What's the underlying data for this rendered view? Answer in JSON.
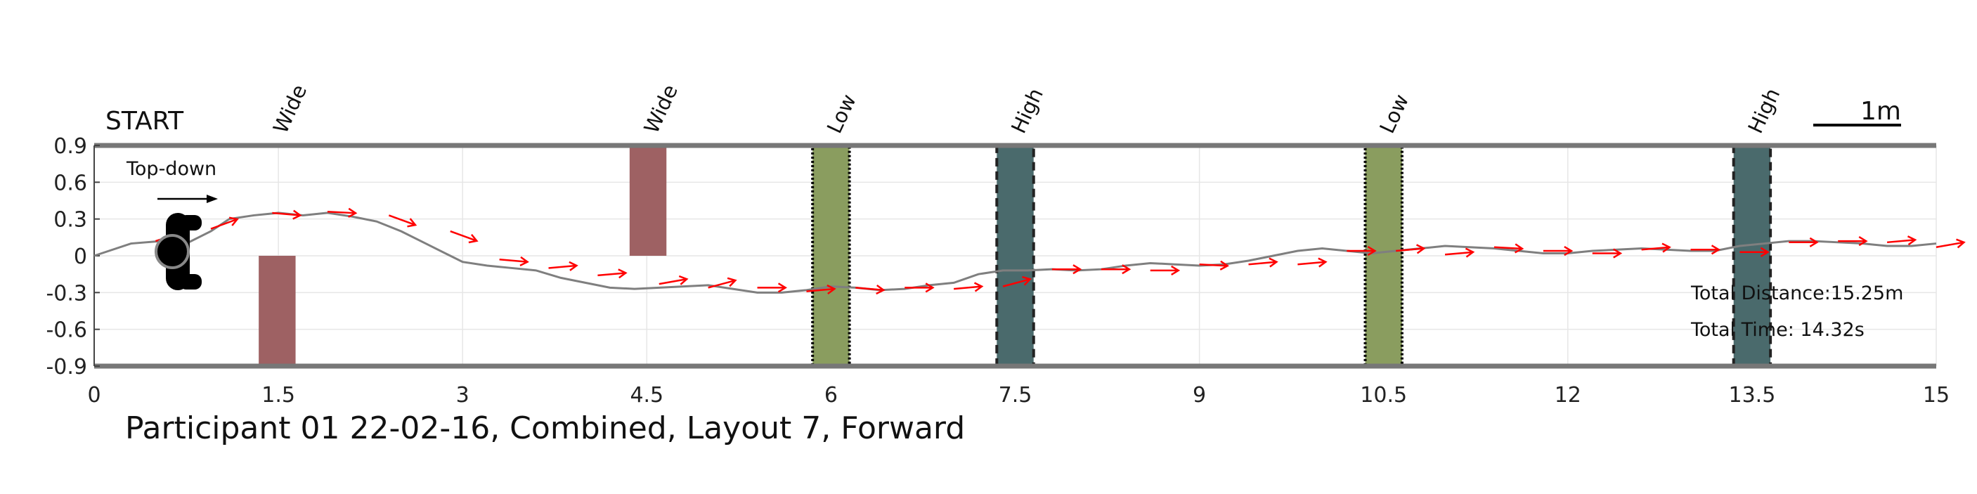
{
  "chart_data": {
    "type": "line",
    "title": "Participant 01 22-02-16, Combined, Layout 7, Forward",
    "start_label": "START",
    "view_label": "Top-down",
    "scale_label": "1m",
    "xlim": [
      0,
      15
    ],
    "ylim": [
      -0.9,
      0.9
    ],
    "x_ticks": [
      "0",
      "1.5",
      "3",
      "4.5",
      "6",
      "7.5",
      "9",
      "10.5",
      "12",
      "13.5",
      "15"
    ],
    "y_ticks": [
      "0.9",
      "0.6",
      "0.3",
      "0",
      "-0.3",
      "-0.6",
      "-0.9"
    ],
    "grid": true,
    "path": {
      "color": "#7f7f7f",
      "x": [
        0,
        0.3,
        0.55,
        0.75,
        0.95,
        1.1,
        1.3,
        1.5,
        1.7,
        1.9,
        2.1,
        2.3,
        2.5,
        2.7,
        2.9,
        3.0,
        3.2,
        3.4,
        3.6,
        3.8,
        4.0,
        4.2,
        4.4,
        4.6,
        4.8,
        5.0,
        5.2,
        5.4,
        5.6,
        5.8,
        6.0,
        6.2,
        6.4,
        6.6,
        6.8,
        7.0,
        7.2,
        7.4,
        7.6,
        7.8,
        8.0,
        8.2,
        8.4,
        8.6,
        8.8,
        9.0,
        9.2,
        9.4,
        9.6,
        9.8,
        10.0,
        10.2,
        10.4,
        10.6,
        10.8,
        11.0,
        11.2,
        11.4,
        11.6,
        11.8,
        12.0,
        12.2,
        12.4,
        12.6,
        12.8,
        13.0,
        13.2,
        13.4,
        13.6,
        13.8,
        14.0,
        14.2,
        14.4,
        14.6,
        14.8,
        15.0
      ],
      "y": [
        0.0,
        0.1,
        0.12,
        0.1,
        0.2,
        0.3,
        0.33,
        0.35,
        0.33,
        0.35,
        0.32,
        0.28,
        0.2,
        0.1,
        0.0,
        -0.05,
        -0.08,
        -0.1,
        -0.12,
        -0.18,
        -0.22,
        -0.26,
        -0.27,
        -0.26,
        -0.25,
        -0.24,
        -0.27,
        -0.3,
        -0.3,
        -0.28,
        -0.25,
        -0.26,
        -0.28,
        -0.27,
        -0.24,
        -0.22,
        -0.15,
        -0.12,
        -0.12,
        -0.11,
        -0.12,
        -0.11,
        -0.08,
        -0.06,
        -0.07,
        -0.08,
        -0.07,
        -0.04,
        0.0,
        0.04,
        0.06,
        0.04,
        0.02,
        0.04,
        0.06,
        0.08,
        0.07,
        0.06,
        0.04,
        0.02,
        0.02,
        0.04,
        0.05,
        0.06,
        0.05,
        0.04,
        0.04,
        0.08,
        0.1,
        0.12,
        0.12,
        0.11,
        0.1,
        0.08,
        0.08,
        0.1
      ]
    },
    "heading_arrows": {
      "color": "#ff0000",
      "x": [
        0.5,
        0.95,
        1.45,
        1.9,
        2.4,
        2.9,
        3.3,
        3.7,
        4.1,
        4.6,
        5.0,
        5.4,
        5.8,
        6.2,
        6.6,
        7.0,
        7.4,
        7.8,
        8.2,
        8.6,
        9.0,
        9.4,
        9.8,
        10.2,
        10.6,
        11.0,
        11.4,
        11.8,
        12.2,
        12.6,
        13.0,
        13.4,
        13.8,
        14.2,
        14.6,
        15.0
      ],
      "y": [
        0.12,
        0.22,
        0.35,
        0.36,
        0.33,
        0.2,
        -0.03,
        -0.1,
        -0.16,
        -0.23,
        -0.26,
        -0.26,
        -0.29,
        -0.26,
        -0.26,
        -0.27,
        -0.25,
        -0.11,
        -0.11,
        -0.12,
        -0.07,
        -0.07,
        -0.07,
        0.04,
        0.04,
        0.01,
        0.07,
        0.04,
        0.02,
        0.05,
        0.05,
        0.03,
        0.11,
        0.12,
        0.11,
        0.07
      ],
      "angle_deg": [
        -18,
        -20,
        5,
        3,
        20,
        20,
        5,
        -5,
        -5,
        -10,
        -15,
        0,
        -5,
        5,
        0,
        -5,
        -15,
        0,
        0,
        0,
        3,
        -5,
        -5,
        0,
        -5,
        -5,
        3,
        0,
        0,
        -5,
        0,
        0,
        0,
        0,
        -5,
        -10
      ]
    },
    "obstacles": [
      {
        "label": "Wide",
        "style": "wide",
        "x": [
          1.34,
          1.64
        ],
        "y": [
          -0.9,
          0.0
        ],
        "color": "#9e6163"
      },
      {
        "label": "Wide",
        "style": "wide",
        "x": [
          4.36,
          4.66
        ],
        "y": [
          0.0,
          0.9
        ],
        "color": "#9e6163"
      },
      {
        "label": "Low",
        "style": "low",
        "x": [
          5.85,
          6.15
        ],
        "y": [
          -0.9,
          0.9
        ],
        "color": "#8a9d5f"
      },
      {
        "label": "High",
        "style": "high",
        "x": [
          7.35,
          7.65
        ],
        "y": [
          -0.9,
          0.9
        ],
        "color": "#4a6a6c"
      },
      {
        "label": "Low",
        "style": "low",
        "x": [
          10.35,
          10.65
        ],
        "y": [
          -0.9,
          0.9
        ],
        "color": "#8a9d5f"
      },
      {
        "label": "High",
        "style": "high",
        "x": [
          13.35,
          13.65
        ],
        "y": [
          -0.9,
          0.9
        ],
        "color": "#4a6a6c"
      }
    ],
    "annotations": {
      "total_distance": "Total Distance:15.25m",
      "total_time": "Total Time: 14.32s"
    }
  }
}
